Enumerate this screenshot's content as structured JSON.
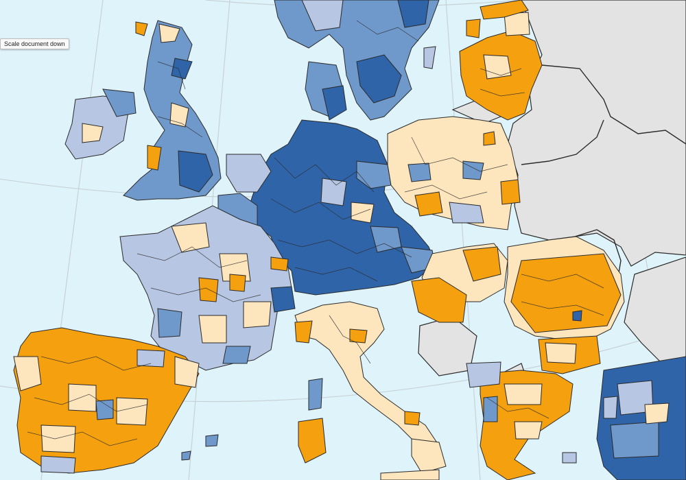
{
  "tooltip": {
    "text": "Scale document down"
  },
  "map": {
    "region": "Europe",
    "colors": {
      "sea": "#dff3fa",
      "no_data": "#e3e3e3",
      "class_1": "#f5a00f",
      "class_2": "#fde5bd",
      "class_3": "#b7c6e2",
      "class_4": "#6f98cb",
      "class_5": "#2f64a8",
      "borders": "#2a2a2a",
      "graticule": "#c7d2d6"
    }
  }
}
